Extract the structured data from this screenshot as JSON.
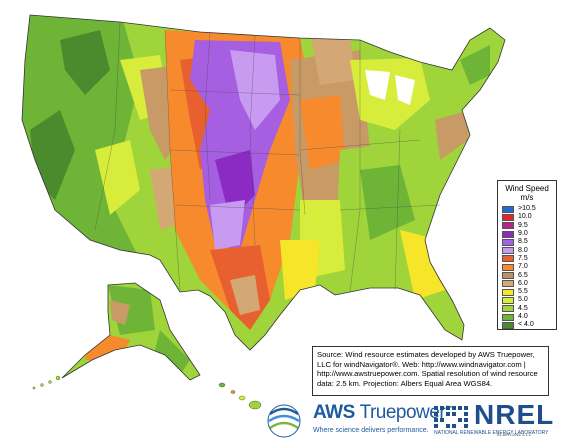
{
  "legend": {
    "title": "Wind Speed",
    "unit": "m/s",
    "items": [
      {
        "label": ">10.5",
        "color": "#1f6ad6"
      },
      {
        "label": "10.0",
        "color": "#e4262b"
      },
      {
        "label": "9.5",
        "color": "#b8238c"
      },
      {
        "label": "9.0",
        "color": "#8c2bc4"
      },
      {
        "label": "8.5",
        "color": "#a65fe0"
      },
      {
        "label": "8.0",
        "color": "#c89af0"
      },
      {
        "label": "7.5",
        "color": "#e86030"
      },
      {
        "label": "7.0",
        "color": "#f68a2c"
      },
      {
        "label": "6.5",
        "color": "#b8926a"
      },
      {
        "label": "6.0",
        "color": "#d4a874"
      },
      {
        "label": "5.5",
        "color": "#f7e52a"
      },
      {
        "label": "5.0",
        "color": "#d7ec3b"
      },
      {
        "label": "4.5",
        "color": "#9fd43a"
      },
      {
        "label": "4.0",
        "color": "#6eb437"
      },
      {
        "label": "< 4.0",
        "color": "#4c8a2e"
      }
    ]
  },
  "source_note": {
    "line1": "Source: Wind resource estimates developed by AWS Truepower,",
    "line2": "LLC for windNavigator®. Web: http://www.windnavigator.com |",
    "line3": "http://www.awstruepower.com. Spatial resolution of wind resource",
    "line4": "data: 2.5 km. Projection: Albers Equal Area WGS84."
  },
  "logos": {
    "aws_brand_bold": "AWS",
    "aws_brand_light": "Truepower",
    "aws_tagline": "Where science delivers performance.",
    "nrel_brand": "NREL",
    "nrel_tagline": "NATIONAL RENEWABLE ENERGY LABORATORY"
  },
  "version": "01-APR-2011 2.1.1",
  "colors": {
    "ocean": "#ffffff",
    "low": "#6eb437",
    "mid_low": "#9fd43a",
    "mid": "#d7ec3b",
    "brown": "#c79a66",
    "orange": "#f68a2c",
    "purple": "#a65fe0",
    "border": "#333333"
  }
}
